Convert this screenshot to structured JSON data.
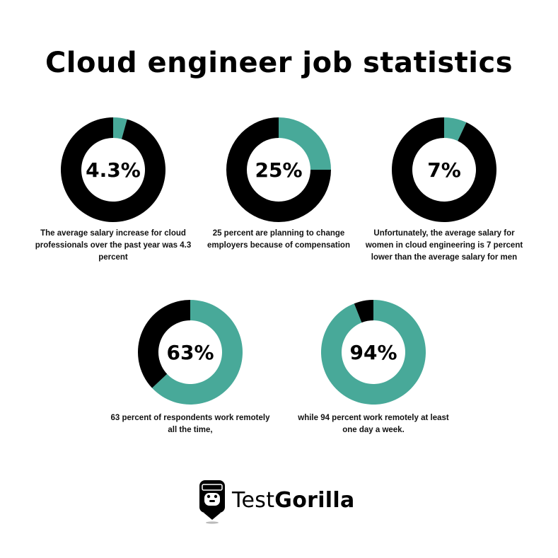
{
  "title": "Cloud engineer job statistics",
  "colors": {
    "accent": "#48a999",
    "dark": "#000000",
    "hole": "#ffffff"
  },
  "chart_data": [
    {
      "type": "pie",
      "values": [
        4.3,
        95.7
      ],
      "label": "4.3%",
      "caption": "The average salary increase for cloud professionals over the past year was 4.3 percent",
      "highlight": "teal"
    },
    {
      "type": "pie",
      "values": [
        25,
        75
      ],
      "label": "25%",
      "caption": "25 percent are planning to change employers because of compensation",
      "highlight": "teal"
    },
    {
      "type": "pie",
      "values": [
        7,
        93
      ],
      "label": "7%",
      "caption": "Unfortunately, the average salary for women in cloud engineering is 7 percent lower than the average salary for men",
      "highlight": "teal"
    },
    {
      "type": "pie",
      "values": [
        63,
        37
      ],
      "label": "63%",
      "caption": "63 percent of respondents work remotely all the time,",
      "highlight": "teal"
    },
    {
      "type": "pie",
      "values": [
        94,
        6
      ],
      "label": "94%",
      "caption": "while 94 percent work remotely at least one day a week.",
      "highlight": "teal"
    }
  ],
  "logo": {
    "text_light": "Test",
    "text_bold": "Gorilla",
    "icon": "gorilla-icon"
  }
}
